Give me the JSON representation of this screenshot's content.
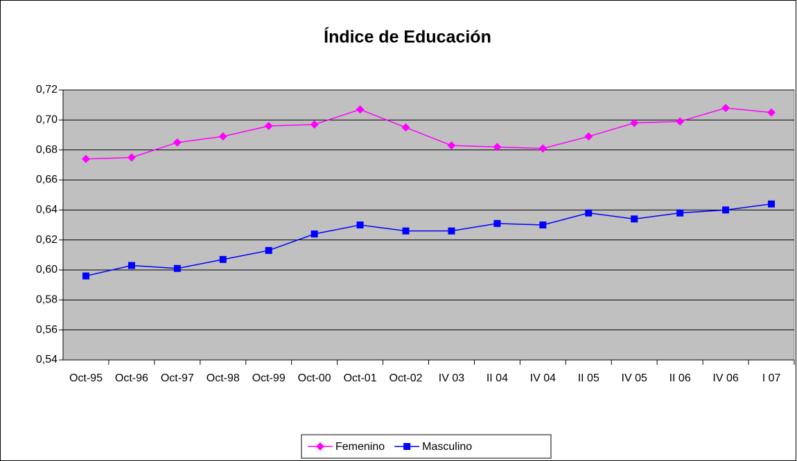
{
  "chart_data": {
    "type": "line",
    "title": "Índice de Educación",
    "categories": [
      "Oct-95",
      "Oct-96",
      "Oct-97",
      "Oct-98",
      "Oct-99",
      "Oct-00",
      "Oct-01",
      "Oct-02",
      "IV 03",
      "II 04",
      "IV 04",
      "II 05",
      "IV 05",
      "II 06",
      "IV 06",
      "I 07"
    ],
    "series": [
      {
        "name": "Femenino",
        "color": "#ff00ff",
        "marker": "diamond",
        "values": [
          0.674,
          0.675,
          0.685,
          0.689,
          0.696,
          0.697,
          0.707,
          0.695,
          0.683,
          0.682,
          0.681,
          0.689,
          0.698,
          0.699,
          0.708,
          0.705
        ]
      },
      {
        "name": "Masculino",
        "color": "#0000ff",
        "marker": "square",
        "values": [
          0.596,
          0.603,
          0.601,
          0.607,
          0.613,
          0.624,
          0.63,
          0.626,
          0.626,
          0.631,
          0.63,
          0.638,
          0.634,
          0.638,
          0.64,
          0.644
        ]
      }
    ],
    "ylim": [
      0.54,
      0.72
    ],
    "yticks": [
      {
        "value": 0.54,
        "label": "0,54"
      },
      {
        "value": 0.56,
        "label": "0,56"
      },
      {
        "value": 0.58,
        "label": "0,58"
      },
      {
        "value": 0.6,
        "label": "0,60"
      },
      {
        "value": 0.62,
        "label": "0,62"
      },
      {
        "value": 0.64,
        "label": "0,64"
      },
      {
        "value": 0.66,
        "label": "0,66"
      },
      {
        "value": 0.68,
        "label": "0,68"
      },
      {
        "value": 0.7,
        "label": "0,70"
      },
      {
        "value": 0.72,
        "label": "0,72"
      }
    ],
    "grid": true,
    "legend": "bottom",
    "plot_background": "#c0c0c0"
  }
}
